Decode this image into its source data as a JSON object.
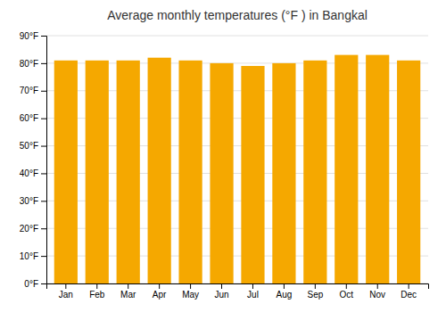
{
  "chart_data": {
    "type": "bar",
    "title": "Average monthly temperatures (°F ) in Bangkal",
    "categories": [
      "Jan",
      "Feb",
      "Mar",
      "Apr",
      "May",
      "Jun",
      "Jul",
      "Aug",
      "Sep",
      "Oct",
      "Nov",
      "Dec"
    ],
    "values": [
      81,
      81,
      81,
      82,
      81,
      80,
      79,
      80,
      81,
      83,
      83,
      81
    ],
    "color": "#F5A800",
    "ylim": [
      0,
      90
    ],
    "yticks": [
      {
        "value": 0,
        "label": "0°F"
      },
      {
        "value": 10,
        "label": "10°F"
      },
      {
        "value": 20,
        "label": "20°F"
      },
      {
        "value": 30,
        "label": "30°F"
      },
      {
        "value": 40,
        "label": "40°F"
      },
      {
        "value": 50,
        "label": "50°F"
      },
      {
        "value": 60,
        "label": "60°F"
      },
      {
        "value": 70,
        "label": "70°F"
      },
      {
        "value": 80,
        "label": "80°F"
      },
      {
        "value": 90,
        "label": "90°F"
      }
    ],
    "grid": true
  }
}
